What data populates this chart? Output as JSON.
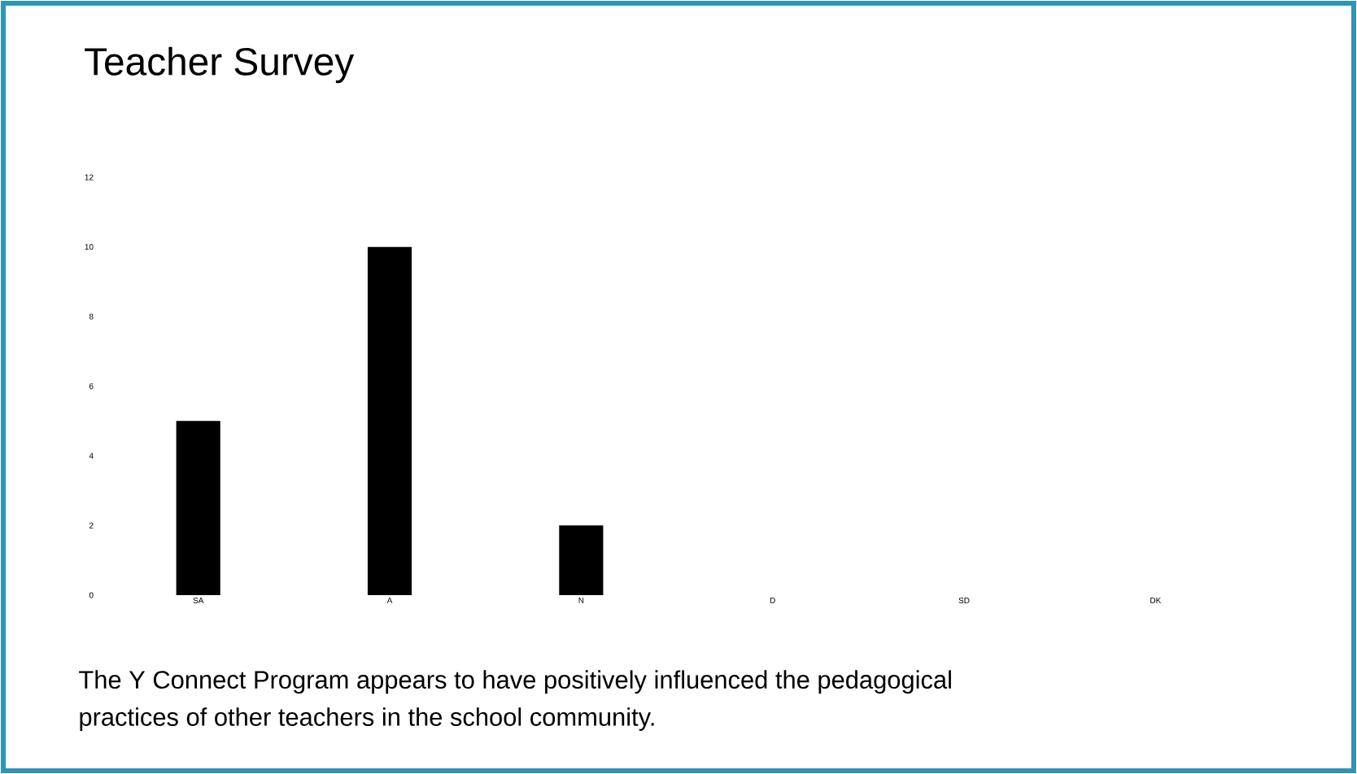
{
  "chart_data": {
    "type": "bar",
    "title": "Teacher Survey",
    "categories": [
      "SA",
      "A",
      "N",
      "D",
      "SD",
      "DK"
    ],
    "values": [
      5,
      10,
      2,
      0,
      0,
      0
    ],
    "color": "#000000",
    "ylim": [
      0,
      12
    ],
    "yticks": [
      0,
      2,
      4,
      6,
      8,
      10,
      12
    ],
    "annotations": [
      "The Y Connect Program appears to have positively influenced the pedagogical practices of other teachers in the school community."
    ]
  }
}
